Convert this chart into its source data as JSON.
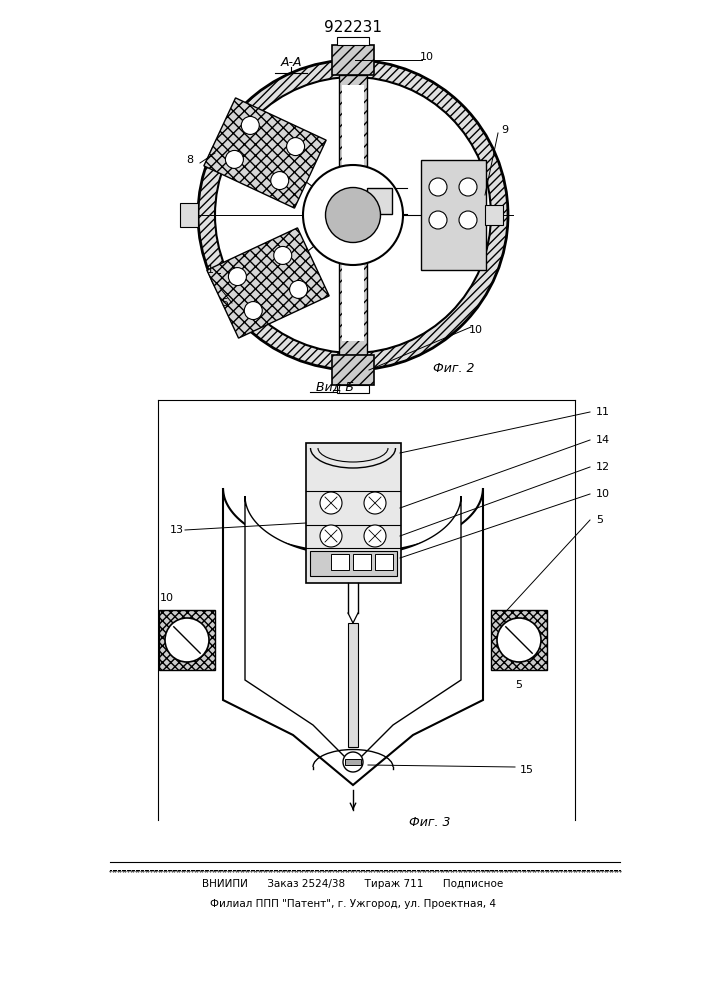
{
  "patent_number": "922231",
  "footer_line1": "ВНИИПИ      Заказ 2524/38      Тираж 711      Подписное",
  "footer_line2": "Филиал ППП \"Патент\", г. Ужгород, ул. Проектная, 4",
  "bg_color": "#ffffff",
  "lc": "#000000"
}
